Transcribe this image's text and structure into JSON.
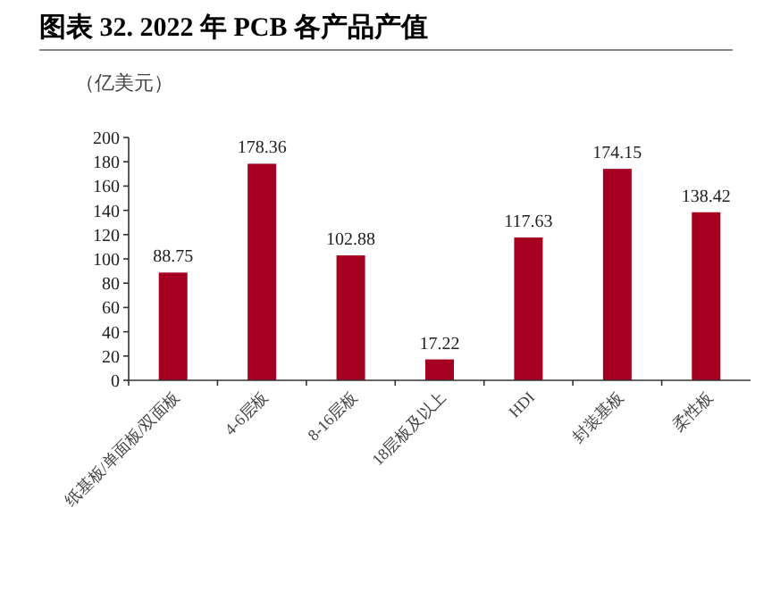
{
  "chart_data": {
    "type": "bar",
    "title": "图表 32. 2022 年 PCB 各产品产值",
    "ylabel": "（亿美元）",
    "categories": [
      "纸基板/单面板/双面板",
      "4-6层板",
      "8-16层板",
      "18层板及以上",
      "HDI",
      "封装基板",
      "柔性板"
    ],
    "values": [
      88.75,
      178.36,
      102.88,
      17.22,
      117.63,
      174.15,
      138.42
    ],
    "color": "#a50021",
    "ylim": [
      0,
      200
    ],
    "yticks": [
      0,
      20,
      40,
      60,
      80,
      100,
      120,
      140,
      160,
      180,
      200
    ],
    "data_labels": true
  }
}
